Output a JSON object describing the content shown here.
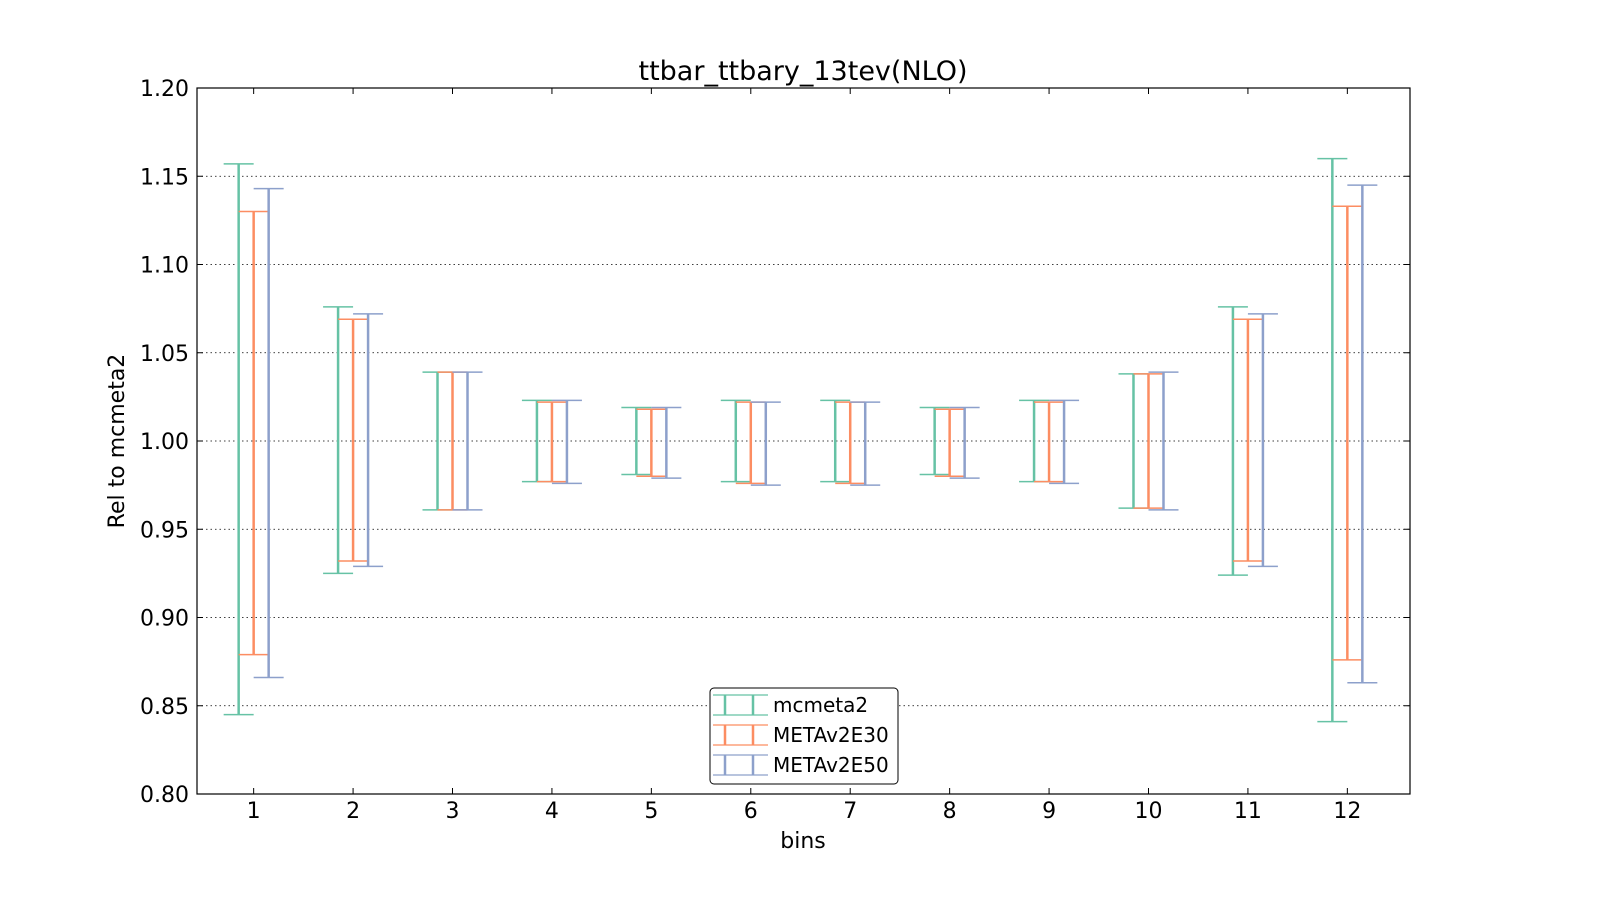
{
  "chart_data": {
    "type": "errorbar",
    "title": "ttbar_ttbary_13tev(NLO)",
    "xlabel": "bins",
    "ylabel": "Rel to mcmeta2",
    "ylim": [
      0.8,
      1.2
    ],
    "yticks": [
      "0.80",
      "0.85",
      "0.90",
      "0.95",
      "1.00",
      "1.05",
      "1.10",
      "1.15",
      "1.20"
    ],
    "categories": [
      "1",
      "2",
      "3",
      "4",
      "5",
      "6",
      "7",
      "8",
      "9",
      "10",
      "11",
      "12"
    ],
    "grid": "horizontal dotted",
    "legend_position": "lower center",
    "series": [
      {
        "name": "mcmeta2",
        "color": "#66c2a5",
        "low": [
          0.845,
          0.925,
          0.961,
          0.977,
          0.981,
          0.977,
          0.977,
          0.981,
          0.977,
          0.962,
          0.924,
          0.841
        ],
        "high": [
          1.157,
          1.076,
          1.039,
          1.023,
          1.019,
          1.023,
          1.023,
          1.019,
          1.023,
          1.038,
          1.076,
          1.16
        ]
      },
      {
        "name": "METAv2E30",
        "color": "#fc8d62",
        "low": [
          0.879,
          0.932,
          0.961,
          0.977,
          0.98,
          0.976,
          0.976,
          0.98,
          0.977,
          0.962,
          0.932,
          0.876
        ],
        "high": [
          1.13,
          1.069,
          1.039,
          1.022,
          1.018,
          1.022,
          1.022,
          1.018,
          1.022,
          1.038,
          1.069,
          1.133
        ]
      },
      {
        "name": "METAv2E50",
        "color": "#8da0cb",
        "low": [
          0.866,
          0.929,
          0.961,
          0.976,
          0.979,
          0.975,
          0.975,
          0.979,
          0.976,
          0.961,
          0.929,
          0.863
        ],
        "high": [
          1.143,
          1.072,
          1.039,
          1.023,
          1.019,
          1.022,
          1.022,
          1.019,
          1.023,
          1.039,
          1.072,
          1.145
        ]
      }
    ]
  }
}
